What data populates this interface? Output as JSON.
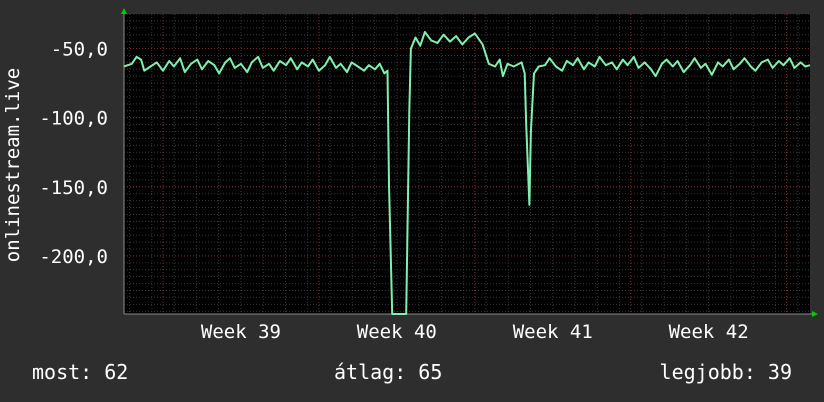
{
  "chart_data": {
    "type": "line",
    "ylabel": "onlinestream.live",
    "xlabel": "",
    "title": "",
    "x_range_weeks": [
      38.25,
      42.65
    ],
    "ylim": [
      -242,
      -25
    ],
    "y_ticks": [
      -50,
      -100,
      -150,
      -200
    ],
    "y_tick_labels": [
      "-50,0",
      "-100,0",
      "-150,0",
      "-200,0"
    ],
    "x_ticks": [
      {
        "label": "Week 39",
        "week": 39
      },
      {
        "label": "Week 40",
        "week": 40
      },
      {
        "label": "Week 41",
        "week": 41
      },
      {
        "label": "Week 42",
        "week": 42
      }
    ],
    "grid": true,
    "series": [
      {
        "color": "#80f0b0",
        "points": [
          [
            38.25,
            -63
          ],
          [
            38.3,
            -61
          ],
          [
            38.33,
            -56
          ],
          [
            38.36,
            -58
          ],
          [
            38.38,
            -66
          ],
          [
            38.42,
            -63
          ],
          [
            38.46,
            -60
          ],
          [
            38.5,
            -66
          ],
          [
            38.54,
            -59
          ],
          [
            38.57,
            -63
          ],
          [
            38.61,
            -57
          ],
          [
            38.64,
            -67
          ],
          [
            38.68,
            -61
          ],
          [
            38.72,
            -58
          ],
          [
            38.75,
            -65
          ],
          [
            38.79,
            -59
          ],
          [
            38.83,
            -62
          ],
          [
            38.86,
            -68
          ],
          [
            38.9,
            -60
          ],
          [
            38.93,
            -57
          ],
          [
            38.96,
            -64
          ],
          [
            39.0,
            -61
          ],
          [
            39.04,
            -67
          ],
          [
            39.07,
            -60
          ],
          [
            39.11,
            -56
          ],
          [
            39.14,
            -64
          ],
          [
            39.18,
            -61
          ],
          [
            39.21,
            -66
          ],
          [
            39.25,
            -59
          ],
          [
            39.29,
            -62
          ],
          [
            39.32,
            -57
          ],
          [
            39.36,
            -65
          ],
          [
            39.39,
            -60
          ],
          [
            39.43,
            -63
          ],
          [
            39.46,
            -58
          ],
          [
            39.5,
            -66
          ],
          [
            39.54,
            -62
          ],
          [
            39.57,
            -56
          ],
          [
            39.61,
            -64
          ],
          [
            39.64,
            -61
          ],
          [
            39.68,
            -67
          ],
          [
            39.71,
            -60
          ],
          [
            39.75,
            -63
          ],
          [
            39.79,
            -66
          ],
          [
            39.82,
            -62
          ],
          [
            39.86,
            -65
          ],
          [
            39.89,
            -61
          ],
          [
            39.92,
            -68
          ],
          [
            39.94,
            -66
          ],
          [
            39.95,
            -148
          ],
          [
            39.97,
            -242
          ],
          [
            40.06,
            -242
          ],
          [
            40.08,
            -95
          ],
          [
            40.09,
            -50
          ],
          [
            40.12,
            -42
          ],
          [
            40.15,
            -48
          ],
          [
            40.18,
            -38
          ],
          [
            40.22,
            -44
          ],
          [
            40.26,
            -46
          ],
          [
            40.3,
            -40
          ],
          [
            40.34,
            -45
          ],
          [
            40.38,
            -41
          ],
          [
            40.42,
            -47
          ],
          [
            40.46,
            -42
          ],
          [
            40.5,
            -39
          ],
          [
            40.55,
            -47
          ],
          [
            40.59,
            -61
          ],
          [
            40.63,
            -63
          ],
          [
            40.66,
            -58
          ],
          [
            40.68,
            -70
          ],
          [
            40.71,
            -61
          ],
          [
            40.75,
            -63
          ],
          [
            40.8,
            -60
          ],
          [
            40.82,
            -68
          ],
          [
            40.83,
            -105
          ],
          [
            40.85,
            -163
          ],
          [
            40.86,
            -110
          ],
          [
            40.88,
            -68
          ],
          [
            40.91,
            -63
          ],
          [
            40.95,
            -62
          ],
          [
            40.98,
            -57
          ],
          [
            41.02,
            -63
          ],
          [
            41.06,
            -66
          ],
          [
            41.09,
            -59
          ],
          [
            41.13,
            -62
          ],
          [
            41.16,
            -57
          ],
          [
            41.2,
            -65
          ],
          [
            41.23,
            -60
          ],
          [
            41.27,
            -63
          ],
          [
            41.3,
            -56
          ],
          [
            41.34,
            -62
          ],
          [
            41.38,
            -60
          ],
          [
            41.41,
            -65
          ],
          [
            41.45,
            -58
          ],
          [
            41.48,
            -62
          ],
          [
            41.52,
            -56
          ],
          [
            41.55,
            -64
          ],
          [
            41.59,
            -60
          ],
          [
            41.63,
            -65
          ],
          [
            41.66,
            -70
          ],
          [
            41.7,
            -61
          ],
          [
            41.73,
            -58
          ],
          [
            41.77,
            -63
          ],
          [
            41.8,
            -59
          ],
          [
            41.84,
            -67
          ],
          [
            41.88,
            -62
          ],
          [
            41.91,
            -57
          ],
          [
            41.95,
            -64
          ],
          [
            41.98,
            -61
          ],
          [
            42.02,
            -69
          ],
          [
            42.06,
            -60
          ],
          [
            42.09,
            -63
          ],
          [
            42.13,
            -58
          ],
          [
            42.16,
            -65
          ],
          [
            42.2,
            -61
          ],
          [
            42.23,
            -57
          ],
          [
            42.27,
            -63
          ],
          [
            42.3,
            -66
          ],
          [
            42.34,
            -60
          ],
          [
            42.38,
            -58
          ],
          [
            42.41,
            -64
          ],
          [
            42.45,
            -59
          ],
          [
            42.48,
            -62
          ],
          [
            42.52,
            -57
          ],
          [
            42.55,
            -64
          ],
          [
            42.59,
            -60
          ],
          [
            42.62,
            -63
          ],
          [
            42.65,
            -62
          ]
        ]
      }
    ]
  },
  "stats": {
    "now": "most: 62",
    "avg": "átlag: 65",
    "best": "legjobb: 39"
  }
}
